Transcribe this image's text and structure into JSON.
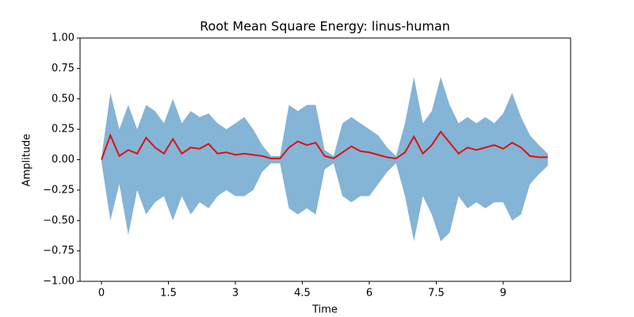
{
  "chart_data": {
    "type": "waveform",
    "title": "Root Mean Square Energy: linus-human",
    "xlabel": "Time",
    "ylabel": "Amplitude",
    "x": [
      0,
      0.2,
      0.4,
      0.6,
      0.8,
      1.0,
      1.2,
      1.4,
      1.6,
      1.8,
      2.0,
      2.2,
      2.4,
      2.6,
      2.8,
      3.0,
      3.2,
      3.4,
      3.6,
      3.8,
      4.0,
      4.2,
      4.4,
      4.6,
      4.8,
      5.0,
      5.2,
      5.4,
      5.6,
      5.8,
      6.0,
      6.2,
      6.4,
      6.6,
      6.8,
      7.0,
      7.2,
      7.4,
      7.6,
      7.8,
      8.0,
      8.2,
      8.4,
      8.6,
      8.8,
      9.0,
      9.2,
      9.4,
      9.6,
      9.8,
      10.0
    ],
    "series": [
      {
        "color": "#1f77b4",
        "opacity": 0.55,
        "values": [
          0.02,
          0.55,
          0.25,
          0.45,
          0.25,
          0.45,
          0.4,
          0.3,
          0.5,
          0.3,
          0.4,
          0.35,
          0.38,
          0.3,
          0.25,
          0.3,
          0.35,
          0.25,
          0.12,
          0.03,
          0.03,
          0.45,
          0.4,
          0.45,
          0.45,
          0.08,
          0.03,
          0.3,
          0.35,
          0.3,
          0.25,
          0.2,
          0.1,
          0.03,
          0.3,
          0.68,
          0.3,
          0.4,
          0.68,
          0.45,
          0.3,
          0.35,
          0.3,
          0.35,
          0.3,
          0.38,
          0.55,
          0.35,
          0.2,
          0.12,
          0.05
        ],
        "lower": [
          -0.02,
          -0.5,
          -0.2,
          -0.62,
          -0.25,
          -0.45,
          -0.35,
          -0.3,
          -0.5,
          -0.3,
          -0.45,
          -0.35,
          -0.4,
          -0.3,
          -0.25,
          -0.3,
          -0.3,
          -0.25,
          -0.1,
          -0.03,
          -0.03,
          -0.4,
          -0.45,
          -0.4,
          -0.45,
          -0.08,
          -0.03,
          -0.3,
          -0.35,
          -0.3,
          -0.3,
          -0.2,
          -0.1,
          -0.03,
          -0.3,
          -0.67,
          -0.3,
          -0.45,
          -0.67,
          -0.6,
          -0.3,
          -0.4,
          -0.35,
          -0.4,
          -0.35,
          -0.35,
          -0.5,
          -0.45,
          -0.2,
          -0.12,
          -0.05
        ]
      },
      {
        "color": "#dd1111",
        "values": [
          0,
          0.2,
          0.03,
          0.08,
          0.05,
          0.18,
          0.1,
          0.05,
          0.17,
          0.05,
          0.1,
          0.09,
          0.13,
          0.05,
          0.06,
          0.04,
          0.05,
          0.04,
          0.03,
          0.01,
          0.01,
          0.1,
          0.15,
          0.12,
          0.14,
          0.03,
          0.01,
          0.06,
          0.11,
          0.07,
          0.06,
          0.04,
          0.02,
          0.01,
          0.06,
          0.19,
          0.05,
          0.12,
          0.23,
          0.14,
          0.05,
          0.1,
          0.08,
          0.1,
          0.12,
          0.09,
          0.14,
          0.1,
          0.03,
          0.02,
          0.02
        ]
      }
    ],
    "xlim": [
      -0.48,
      10.51
    ],
    "xticks": [
      0,
      1.5,
      3,
      4.5,
      6,
      7.5,
      9
    ],
    "ylim": [
      -1,
      1
    ],
    "yticks": [
      {
        "value": -1,
        "label": "−1.00"
      },
      {
        "value": -0.75,
        "label": "−0.75"
      },
      {
        "value": -0.5,
        "label": "−0.50"
      },
      {
        "value": -0.25,
        "label": "−0.25"
      },
      {
        "value": 0,
        "label": "0.00"
      },
      {
        "value": 0.25,
        "label": "0.25"
      },
      {
        "value": 0.5,
        "label": "0.50"
      },
      {
        "value": 0.75,
        "label": "0.75"
      },
      {
        "value": 1,
        "label": "1.00"
      }
    ]
  }
}
